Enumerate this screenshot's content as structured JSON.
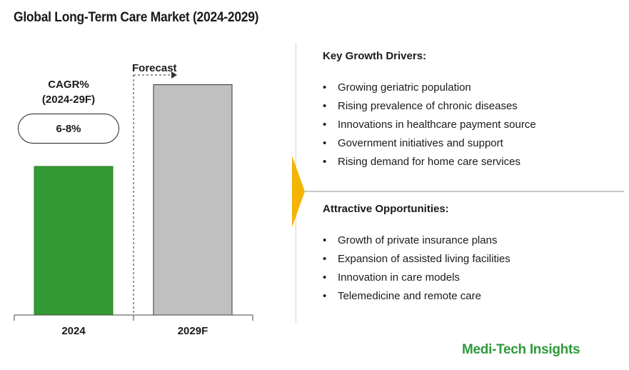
{
  "title": "Global Long-Term Care Market (2024-2029)",
  "cagr": {
    "label_line1": "CAGR%",
    "label_line2": "(2024-29F)",
    "value": "6-8%"
  },
  "forecast_label": "Forecast",
  "chart_data": {
    "type": "bar",
    "title": "Global Long-Term Care Market (2024-2029)",
    "categories": [
      "2024",
      "2029F"
    ],
    "values": [
      1.0,
      1.55
    ],
    "ylim": [
      0,
      1.62
    ],
    "colors": [
      "#339933",
      "#c0c0c0"
    ],
    "grid": false,
    "annotations": [
      "CAGR% (2024-29F): 6-8%",
      "Forecast"
    ]
  },
  "drivers": {
    "heading": "Key Growth Drivers:",
    "items": [
      "Growing geriatric population",
      "Rising prevalence of chronic diseases",
      "Innovations in healthcare payment source",
      "Government initiatives and support",
      "Rising demand for home care services"
    ]
  },
  "opportunities": {
    "heading": "Attractive Opportunities:",
    "items": [
      "Growth of private insurance plans",
      "Expansion of assisted living facilities",
      "Innovation in care models",
      "Telemedicine and remote care"
    ]
  },
  "accent_color": "#f5b400",
  "brand": "Medi-Tech Insights"
}
